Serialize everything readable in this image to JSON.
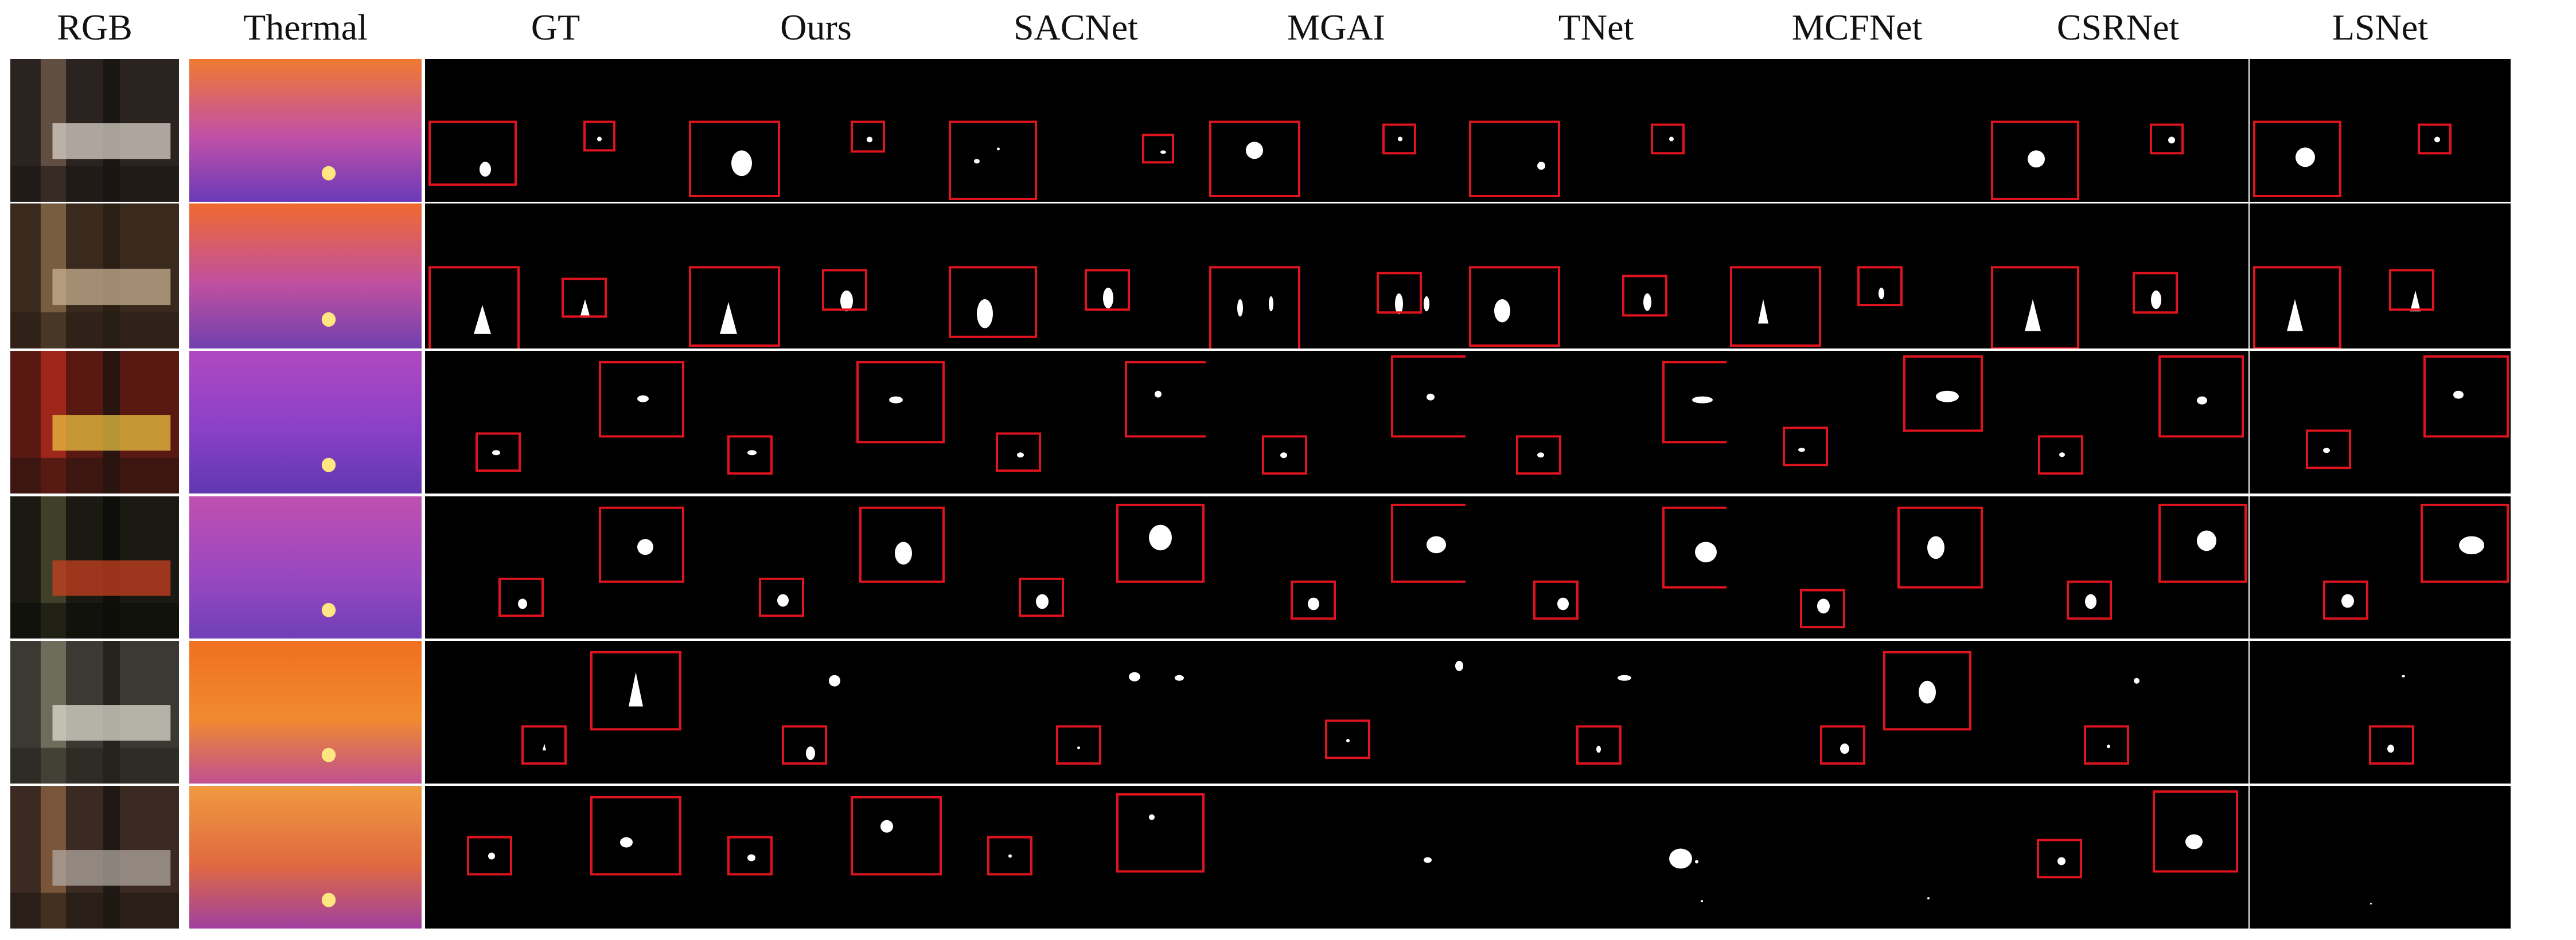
{
  "figure": {
    "columns": [
      {
        "key": "rgb",
        "label": "RGB",
        "kind": "photo"
      },
      {
        "key": "thermal",
        "label": "Thermal",
        "kind": "thermal"
      },
      {
        "key": "gt",
        "label": "GT",
        "kind": "mask"
      },
      {
        "key": "ours",
        "label": "Ours",
        "kind": "mask"
      },
      {
        "key": "sacnet",
        "label": "SACNet",
        "kind": "mask"
      },
      {
        "key": "mgai",
        "label": "MGAI",
        "kind": "mask"
      },
      {
        "key": "tnet",
        "label": "TNet",
        "kind": "mask"
      },
      {
        "key": "mcfnet",
        "label": "MCFNet",
        "kind": "mask"
      },
      {
        "key": "csrnet",
        "label": "CSRNet",
        "kind": "mask"
      },
      {
        "key": "lsnet",
        "label": "LSNet",
        "kind": "mask"
      }
    ],
    "row_count": 6,
    "colors": {
      "highlight_box": "#e0141e",
      "mask_background": "#000000",
      "mask_blob": "#ffffff"
    }
  }
}
